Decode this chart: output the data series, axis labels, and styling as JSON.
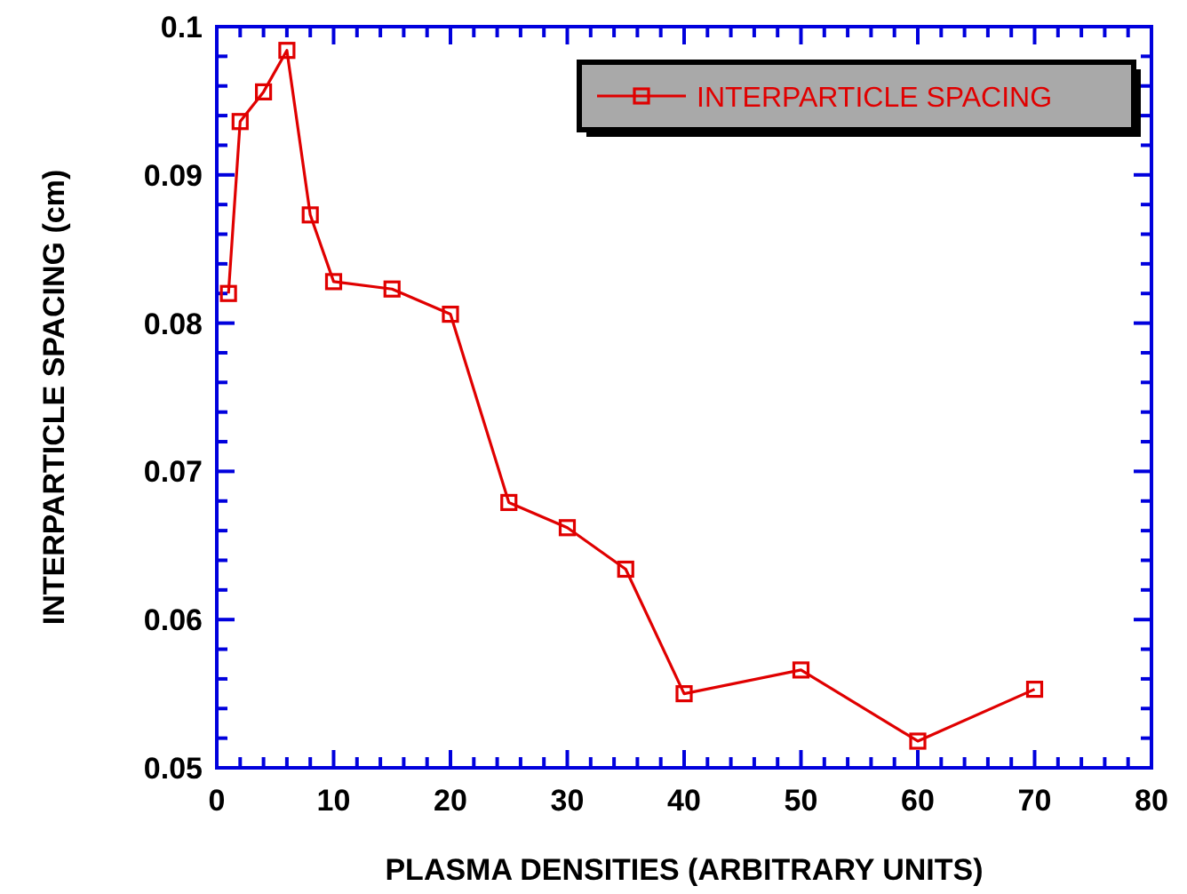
{
  "chart_data": {
    "type": "line",
    "xlabel": "PLASMA DENSITIES (ARBITRARY UNITS)",
    "ylabel": "INTERPARTICLE SPACING (cm)",
    "x": [
      1,
      2,
      4,
      6,
      8,
      10,
      15,
      20,
      25,
      30,
      35,
      40,
      50,
      60,
      70
    ],
    "series": [
      {
        "name": "INTERPARTICLE SPACING",
        "color": "#e00000",
        "values": [
          0.082,
          0.0936,
          0.0956,
          0.0984,
          0.0873,
          0.0828,
          0.0823,
          0.0806,
          0.0679,
          0.0662,
          0.0634,
          0.055,
          0.0566,
          0.0518,
          0.0553
        ]
      }
    ],
    "xlim": [
      0,
      80
    ],
    "xticks": [
      0,
      10,
      20,
      30,
      40,
      50,
      60,
      70,
      80
    ],
    "ylim": [
      0.05,
      0.1
    ],
    "yticks": [
      0.05,
      0.06,
      0.07,
      0.08,
      0.09,
      {
        "value": 0.1,
        "label": "0.1"
      }
    ],
    "grid": false,
    "legend": "top right",
    "marker": "square",
    "line_style": "solid"
  }
}
